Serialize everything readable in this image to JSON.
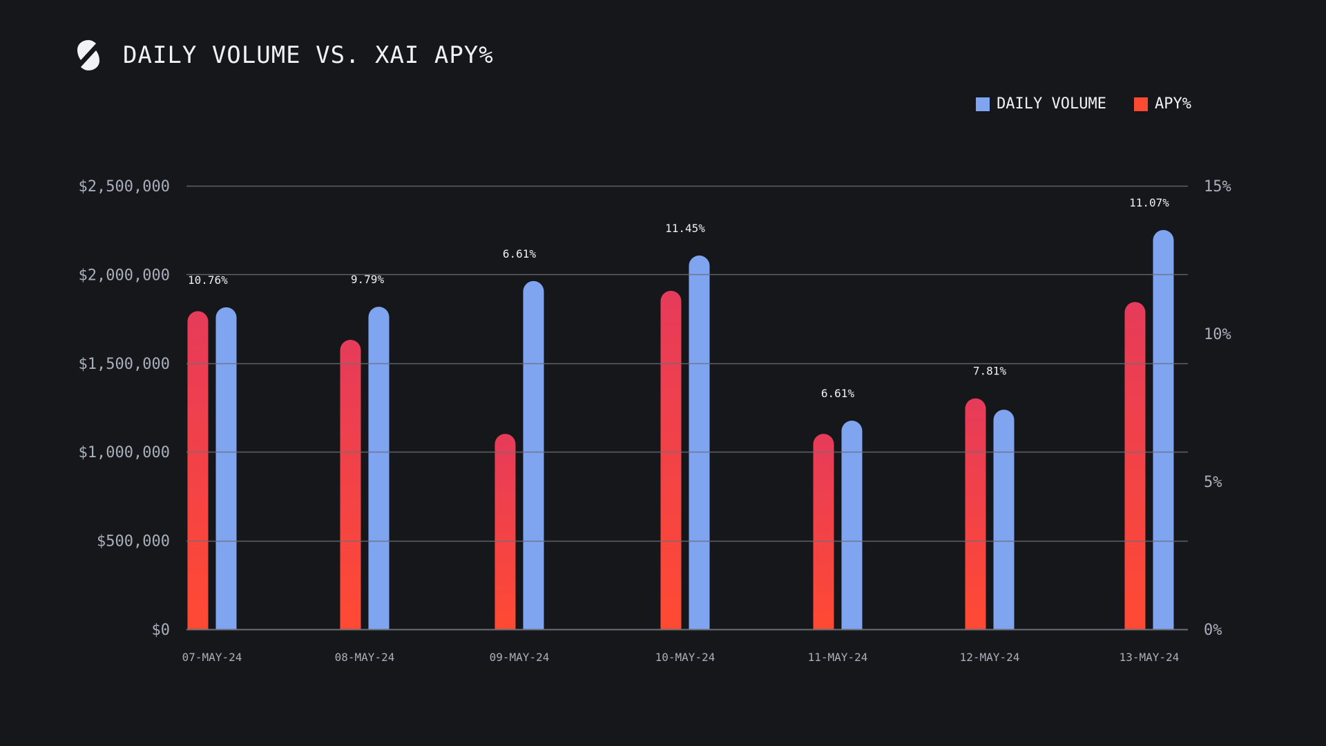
{
  "header": {
    "title": "DAILY VOLUME VS. XAI APY%",
    "logo": "s-logo-icon"
  },
  "legend": [
    {
      "label": "DAILY VOLUME",
      "color": "#7fa5f0"
    },
    {
      "label": "APY%",
      "color": "#ff4a33"
    }
  ],
  "colors": {
    "background": "#16171b",
    "volume": "#7fa5f0",
    "apy_top": "#e63b5a",
    "apy_bottom": "#ff4a33",
    "grid": "#6b6f77",
    "axis_text": "#a9b0bc"
  },
  "chart_data": {
    "type": "bar",
    "title": "DAILY VOLUME VS. XAI APY%",
    "xlabel": "",
    "ylabel": "",
    "categories": [
      "07-MAY-24",
      "08-MAY-24",
      "09-MAY-24",
      "10-MAY-24",
      "11-MAY-24",
      "12-MAY-24",
      "13-MAY-24"
    ],
    "series": [
      {
        "name": "APY%",
        "axis": "right",
        "values": [
          10.76,
          9.79,
          6.61,
          11.45,
          6.61,
          7.81,
          11.07
        ],
        "labels": [
          "10.76%",
          "9.79%",
          "6.61%",
          "11.45%",
          "6.61%",
          "7.81%",
          "11.07%"
        ]
      },
      {
        "name": "DAILY VOLUME",
        "axis": "left",
        "values": [
          1815000,
          1818000,
          1963000,
          2107000,
          1176000,
          1238000,
          2251000
        ]
      }
    ],
    "ylim": [
      0,
      2500000
    ],
    "y2lim": [
      0,
      15
    ],
    "yticks": [
      "$0",
      "$500,000",
      "$1,000,000",
      "$1,500,000",
      "$2,000,000",
      "$2,500,000"
    ],
    "ytick_values": [
      0,
      500000,
      1000000,
      1500000,
      2000000,
      2500000
    ],
    "y2ticks": [
      "0%",
      "5%",
      "10%",
      "15%"
    ],
    "y2tick_values": [
      0,
      5,
      10,
      15
    ],
    "grid": true,
    "legend_position": "top-right"
  }
}
